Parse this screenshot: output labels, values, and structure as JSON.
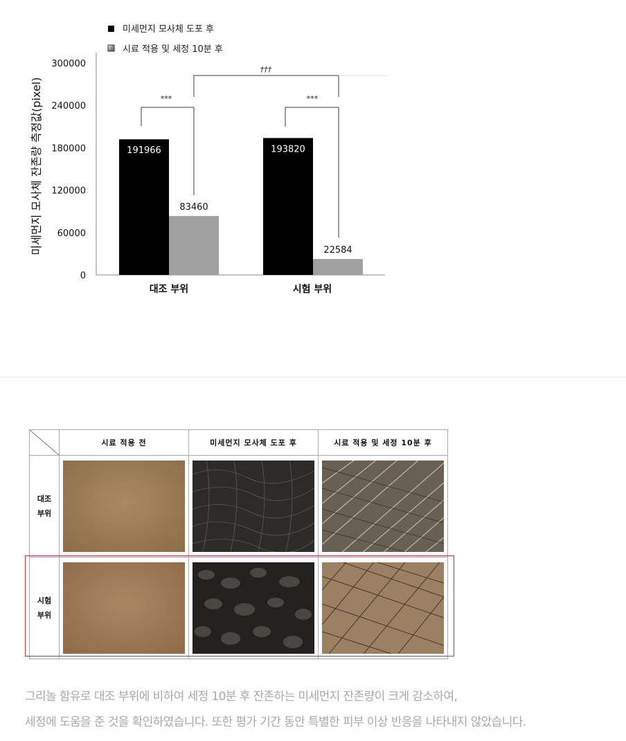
{
  "chart_data": {
    "type": "bar",
    "categories": [
      "대조 부위",
      "시험 부위"
    ],
    "series": [
      {
        "name": "미세먼지 모사체 도포 후",
        "values": [
          191966,
          193820
        ],
        "color": "#000000"
      },
      {
        "name": "시료 적용 및 세정 10분 후",
        "values": [
          83460,
          22584
        ],
        "color": "#a0a0a0"
      }
    ],
    "ylabel": "미세먼지 모사체 잔존량 측정값(pixel)",
    "xlabel": "",
    "ylim": [
      0,
      300000
    ],
    "yticks": [
      "0",
      "60000",
      "120000",
      "180000",
      "240000",
      "300000"
    ],
    "data_labels": [
      "191966",
      "83460",
      "193820",
      "22584"
    ],
    "legend_position": "top-left",
    "grid": false,
    "annotations": {
      "control_sig": "***",
      "test_sig": "***",
      "between_sig": "†††"
    }
  },
  "table": {
    "columns": [
      "시료 적용 전",
      "미세먼지 모사체 도포 후",
      "시료 적용 및 세정 10분 후"
    ],
    "rows": [
      {
        "label_line1": "대조",
        "label_line2": "부위"
      },
      {
        "label_line1": "시험",
        "label_line2": "부위"
      }
    ]
  },
  "caption": {
    "line1": "그리놀 함유로 대조 부위에 비하여 세정 10분 후 잔존하는 미세먼지 잔존량이 크게 감소하여,",
    "line2": "세정에 도움을 준 것을 확인하였습니다. 또한 평가 기간 동안 특별한 피부 이상 반응을 나타내지 않았습니다."
  }
}
